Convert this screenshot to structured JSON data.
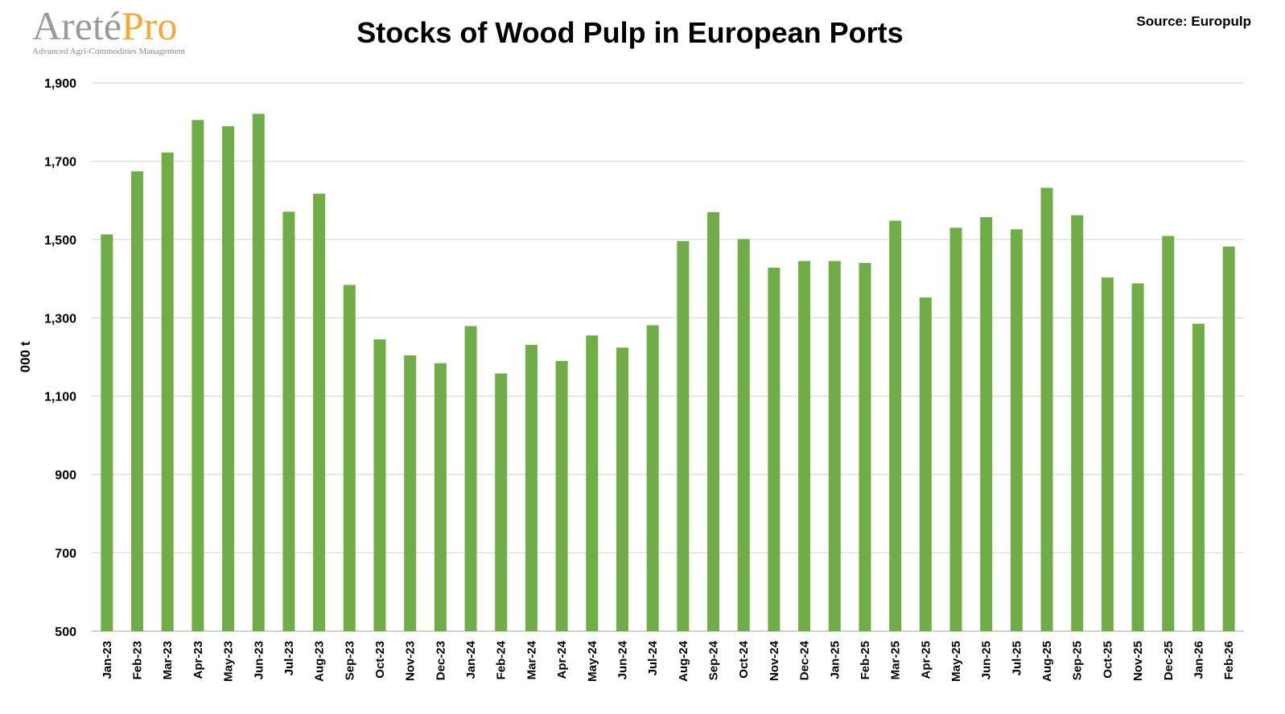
{
  "logo": {
    "name_part1": "Areté",
    "name_part2": "Pro",
    "tagline": "Advanced Agri-Commodities Management"
  },
  "source": "Source: Europulp",
  "chart_data": {
    "type": "bar",
    "title": "Stocks of Wood Pulp in European Ports",
    "xlabel": "",
    "ylabel": "000 t",
    "ylim": [
      500,
      1900
    ],
    "yticks": [
      500,
      700,
      900,
      1100,
      1300,
      1500,
      1700,
      1900
    ],
    "ytick_labels": [
      "500",
      "700",
      "900",
      "1,100",
      "1,300",
      "1,500",
      "1,700",
      "1,900"
    ],
    "grid": true,
    "bar_color": "#70ad47",
    "categories": [
      "Jan-23",
      "Feb-23",
      "Mar-23",
      "Apr-23",
      "May-23",
      "Jun-23",
      "Jul-23",
      "Aug-23",
      "Sep-23",
      "Oct-23",
      "Nov-23",
      "Dec-23",
      "Jan-24",
      "Feb-24",
      "Mar-24",
      "Apr-24",
      "May-24",
      "Jun-24",
      "Jul-24",
      "Aug-24",
      "Sep-24",
      "Oct-24",
      "Nov-24",
      "Dec-24",
      "Jan-25",
      "Feb-25",
      "Mar-25",
      "Apr-25",
      "May-25",
      "Jun-25",
      "Jul-25",
      "Aug-25",
      "Sep-25",
      "Oct-25",
      "Nov-25",
      "Dec-25",
      "Jan-26",
      "Feb-26"
    ],
    "values": [
      1513,
      1674,
      1722,
      1805,
      1789,
      1821,
      1571,
      1617,
      1384,
      1245,
      1204,
      1184,
      1279,
      1158,
      1231,
      1190,
      1255,
      1224,
      1281,
      1496,
      1570,
      1501,
      1428,
      1445,
      1445,
      1440,
      1548,
      1352,
      1530,
      1557,
      1526,
      1632,
      1562,
      1403,
      1388,
      1509,
      1285,
      1482
    ]
  }
}
